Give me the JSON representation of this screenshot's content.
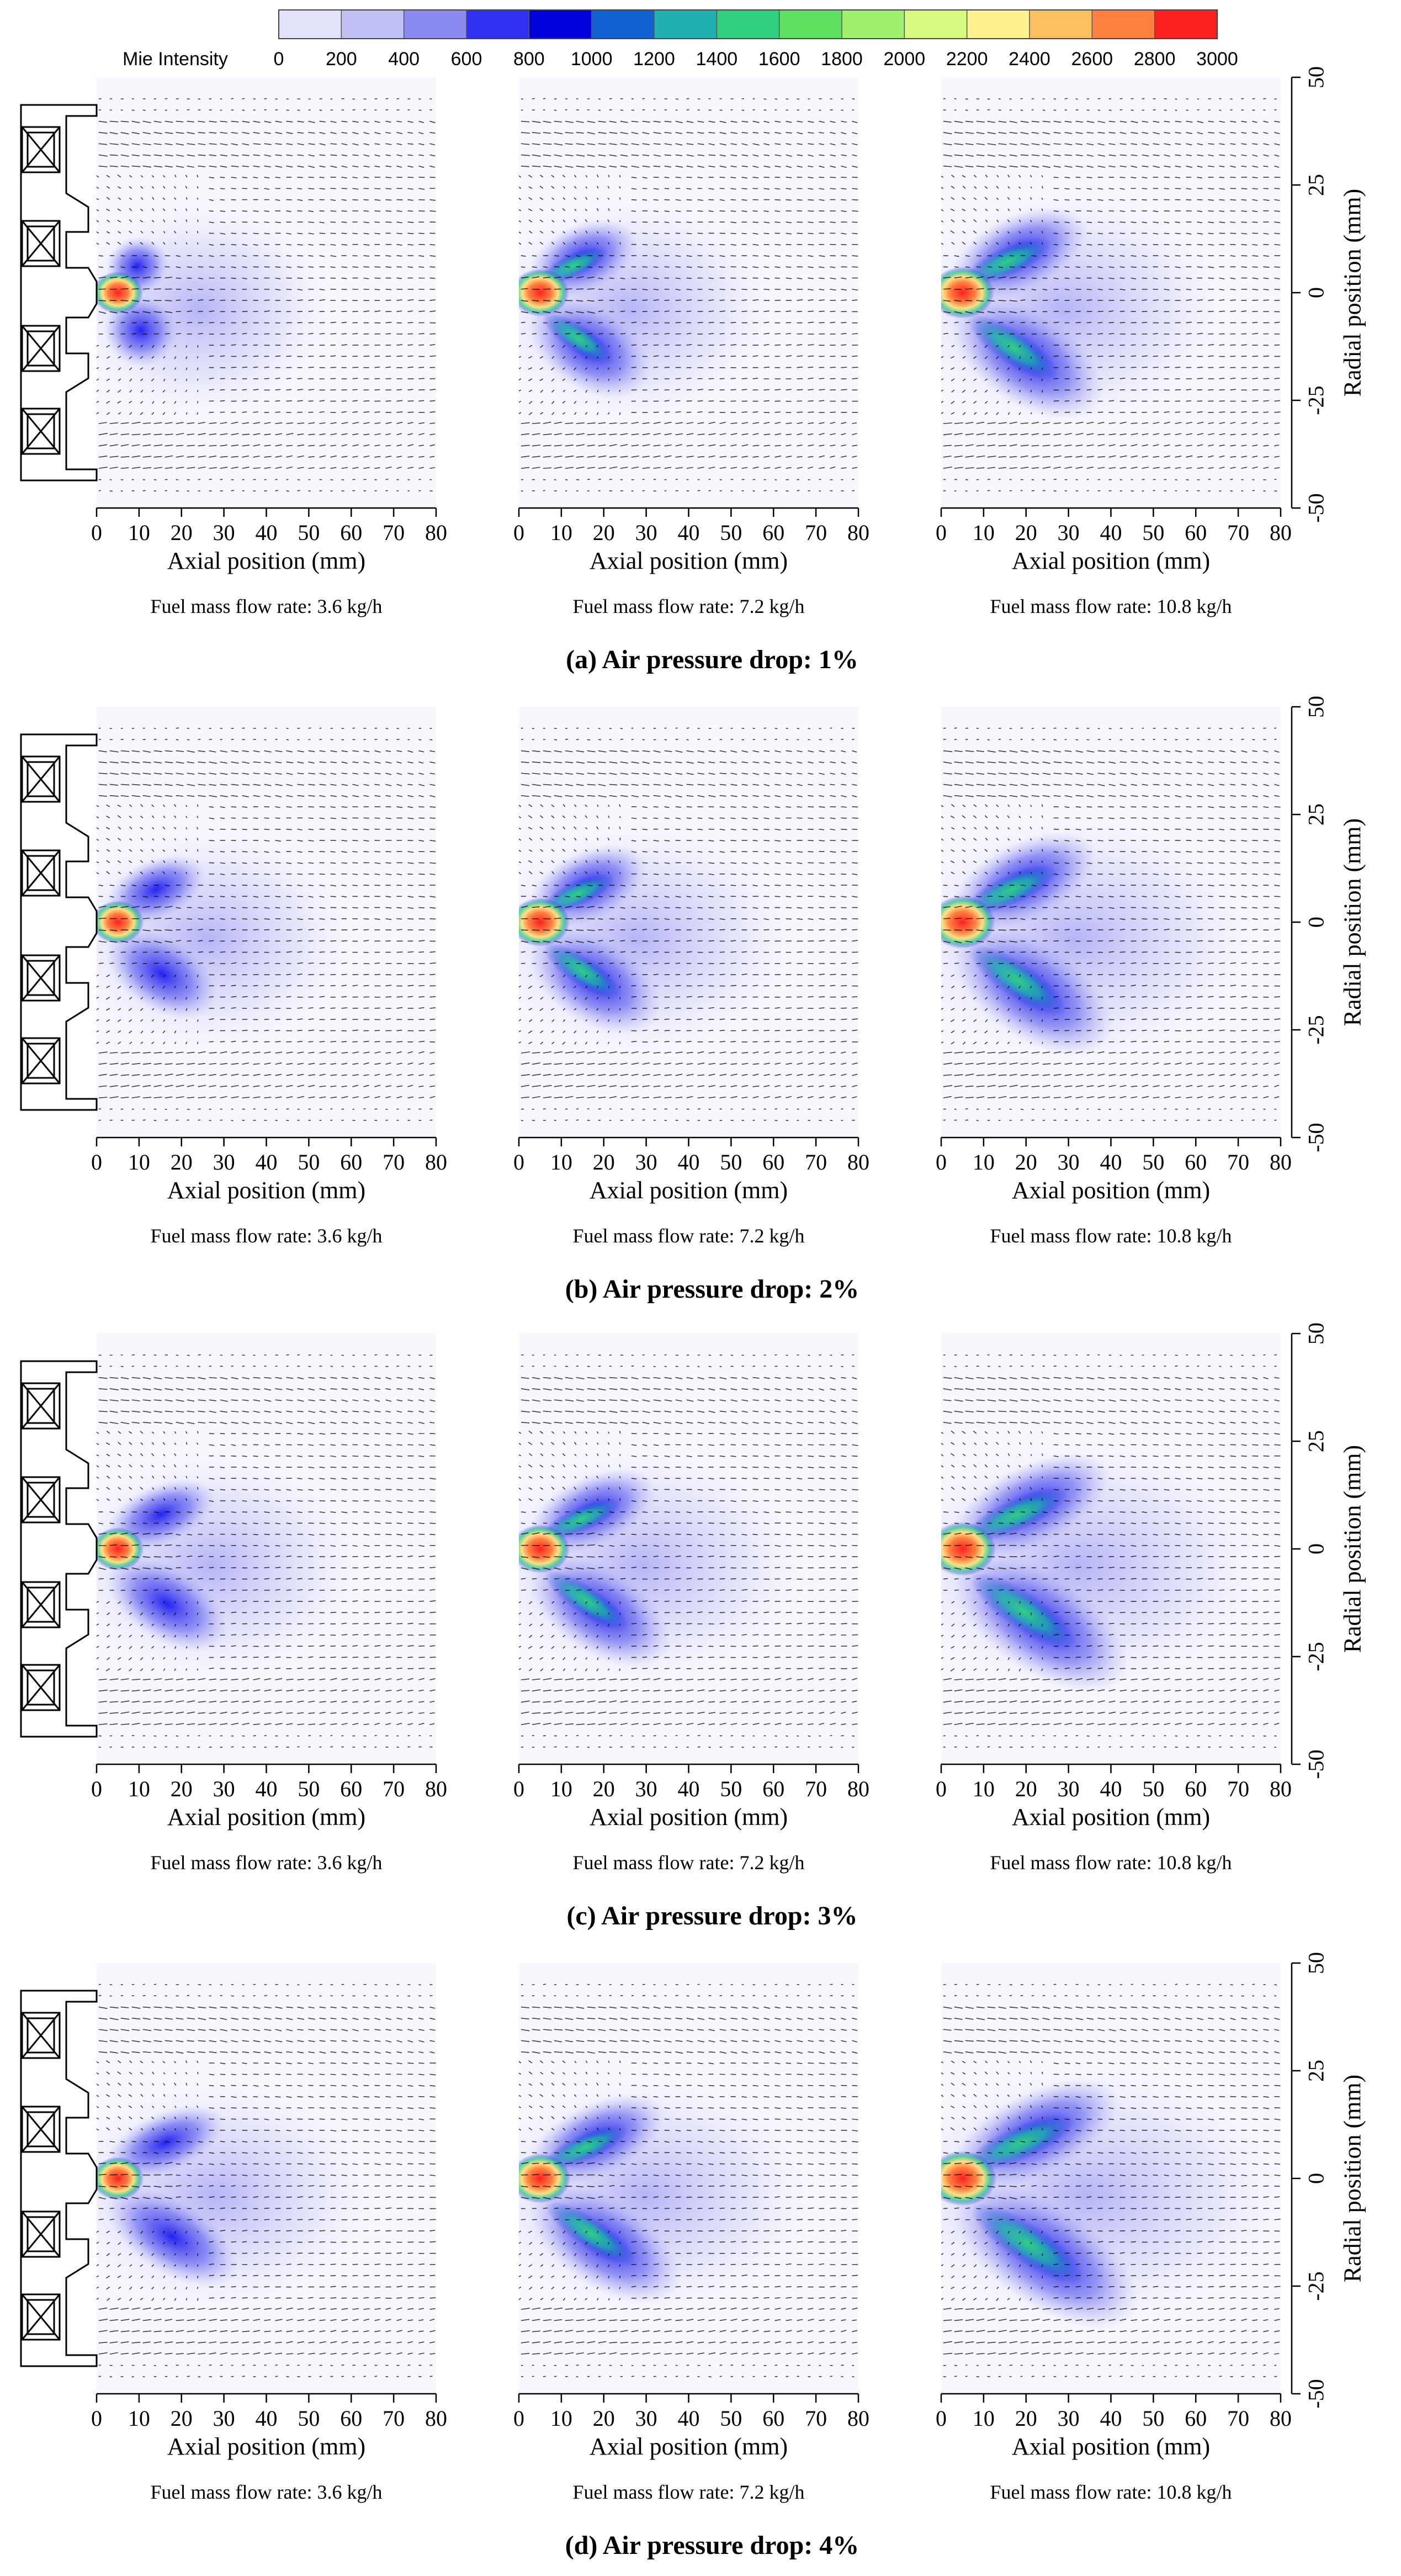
{
  "chart_data": {
    "type": "heatmap",
    "description_free": true,
    "colorbar": {
      "title": "Mie Intensity",
      "range": [
        0,
        3000
      ],
      "ticks": [
        "0",
        "200",
        "400",
        "600",
        "800",
        "1000",
        "1200",
        "1400",
        "1600",
        "1800",
        "2000",
        "2200",
        "2400",
        "2600",
        "2800",
        "3000"
      ],
      "colors": [
        "#ffffff",
        "#e2e2fa",
        "#c0c0f5",
        "#8a8af0",
        "#3030f0",
        "#0000dd",
        "#1060d0",
        "#20b0b0",
        "#30d080",
        "#60e060",
        "#a0f070",
        "#d8f880",
        "#fff090",
        "#ffc060",
        "#ff8040",
        "#ff2020"
      ]
    },
    "x_axis": {
      "label": "Axial position (mm)",
      "range": [
        0,
        80
      ],
      "tick_labels": [
        "0",
        "10",
        "20",
        "30",
        "40",
        "50",
        "60",
        "70",
        "80"
      ]
    },
    "y_axis": {
      "label": "Radial position (mm)",
      "range": [
        -50,
        50
      ],
      "tick_labels": [
        "-50",
        "-25",
        "0",
        "25",
        "50"
      ]
    },
    "rows": [
      {
        "caption": "(a) Air pressure drop: 1%",
        "pressure_drop_percent": 1,
        "panels": [
          {
            "caption": "Fuel mass flow rate: 3.6 kg/h",
            "fuel_kg_per_h": 3.6,
            "branch_len": 12,
            "spread": 0.55,
            "peak": 3000,
            "tail": 0.35
          },
          {
            "caption": "Fuel mass flow rate: 7.2 kg/h",
            "fuel_kg_per_h": 7.2,
            "branch_len": 22,
            "spread": 0.8,
            "peak": 3000,
            "tail": 0.45
          },
          {
            "caption": "Fuel mass flow rate: 10.8 kg/h",
            "fuel_kg_per_h": 10.8,
            "branch_len": 28,
            "spread": 1.0,
            "peak": 3000,
            "tail": 0.6
          }
        ]
      },
      {
        "caption": "(b) Air pressure drop: 2%",
        "pressure_drop_percent": 2,
        "panels": [
          {
            "caption": "Fuel mass flow rate: 3.6 kg/h",
            "fuel_kg_per_h": 3.6,
            "branch_len": 20,
            "spread": 0.6,
            "peak": 3000,
            "tail": 0.45
          },
          {
            "caption": "Fuel mass flow rate: 7.2 kg/h",
            "fuel_kg_per_h": 7.2,
            "branch_len": 24,
            "spread": 0.85,
            "peak": 3000,
            "tail": 0.55
          },
          {
            "caption": "Fuel mass flow rate: 10.8 kg/h",
            "fuel_kg_per_h": 10.8,
            "branch_len": 30,
            "spread": 1.05,
            "peak": 3000,
            "tail": 0.75
          }
        ]
      },
      {
        "caption": "(c) Air pressure drop: 3%",
        "pressure_drop_percent": 3,
        "panels": [
          {
            "caption": "Fuel mass flow rate: 3.6 kg/h",
            "fuel_kg_per_h": 3.6,
            "branch_len": 22,
            "spread": 0.6,
            "peak": 3000,
            "tail": 0.5
          },
          {
            "caption": "Fuel mass flow rate: 7.2 kg/h",
            "fuel_kg_per_h": 7.2,
            "branch_len": 26,
            "spread": 0.85,
            "peak": 3000,
            "tail": 0.6
          },
          {
            "caption": "Fuel mass flow rate: 10.8 kg/h",
            "fuel_kg_per_h": 10.8,
            "branch_len": 33,
            "spread": 1.1,
            "peak": 3000,
            "tail": 0.8
          }
        ]
      },
      {
        "caption": "(d) Air pressure drop: 4%",
        "pressure_drop_percent": 4,
        "panels": [
          {
            "caption": "Fuel mass flow rate: 3.6 kg/h",
            "fuel_kg_per_h": 3.6,
            "branch_len": 24,
            "spread": 0.6,
            "peak": 3000,
            "tail": 0.55
          },
          {
            "caption": "Fuel mass flow rate: 7.2 kg/h",
            "fuel_kg_per_h": 7.2,
            "branch_len": 28,
            "spread": 0.9,
            "peak": 3000,
            "tail": 0.65
          },
          {
            "caption": "Fuel mass flow rate: 10.8 kg/h",
            "fuel_kg_per_h": 10.8,
            "branch_len": 35,
            "spread": 1.15,
            "peak": 3000,
            "tail": 0.9
          }
        ]
      }
    ],
    "vector_field": {
      "shown": true,
      "color": "#000000"
    },
    "injector_schematic": {
      "shown": true,
      "swirler_icon": "crossed-box-icon"
    }
  }
}
